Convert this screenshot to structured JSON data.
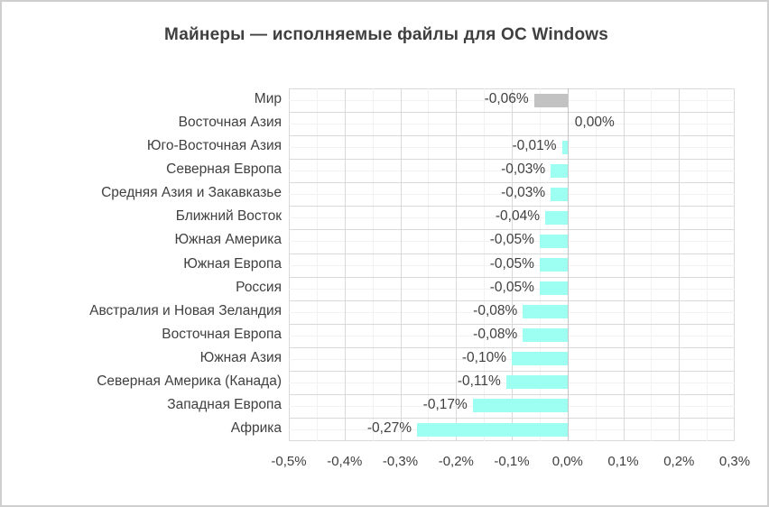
{
  "title": "Майнеры — исполняемые файлы для ОС Windows",
  "chart_data": {
    "type": "bar",
    "orientation": "horizontal",
    "title": "Майнеры — исполняемые файлы для ОС Windows",
    "categories": [
      "Мир",
      "Восточная Азия",
      "Юго-Восточная Азия",
      "Северная Европа",
      "Средняя Азия и Закавказье",
      "Ближний Восток",
      "Южная Америка",
      "Южная Европа",
      "Россия",
      "Австралия и Новая Зеландия",
      "Восточная Европа",
      "Южная Азия",
      "Северная Америка (Канада)",
      "Западная Европа",
      "Африка"
    ],
    "values": [
      -0.06,
      0.0,
      -0.01,
      -0.03,
      -0.03,
      -0.04,
      -0.05,
      -0.05,
      -0.05,
      -0.08,
      -0.08,
      -0.1,
      -0.11,
      -0.17,
      -0.27
    ],
    "value_labels": [
      "-0,06%",
      "0,00%",
      "-0,01%",
      "-0,03%",
      "-0,03%",
      "-0,04%",
      "-0,05%",
      "-0,05%",
      "-0,05%",
      "-0,08%",
      "-0,08%",
      "-0,10%",
      "-0,11%",
      "-0,17%",
      "-0,27%"
    ],
    "xlim": [
      -0.5,
      0.3
    ],
    "x_tick_values": [
      -0.5,
      -0.4,
      -0.3,
      -0.2,
      -0.1,
      0.0,
      0.1,
      0.2,
      0.3
    ],
    "x_tick_labels": [
      "-0,5%",
      "-0,4%",
      "-0,3%",
      "-0,2%",
      "-0,1%",
      "0,0%",
      "0,1%",
      "0,2%",
      "0,3%"
    ],
    "grid": "major-and-minor",
    "legend": "none",
    "colors": {
      "bar_default": "#9DFFF2",
      "bar_world": "#C2C2C2",
      "grid_major": "#D9D9D9",
      "grid_minor": "#F2F2F2",
      "zero_axis": "#C6C6C6",
      "text": "#404040",
      "frame_border": "#CFCFCF",
      "background": "#FFFFFF"
    }
  }
}
